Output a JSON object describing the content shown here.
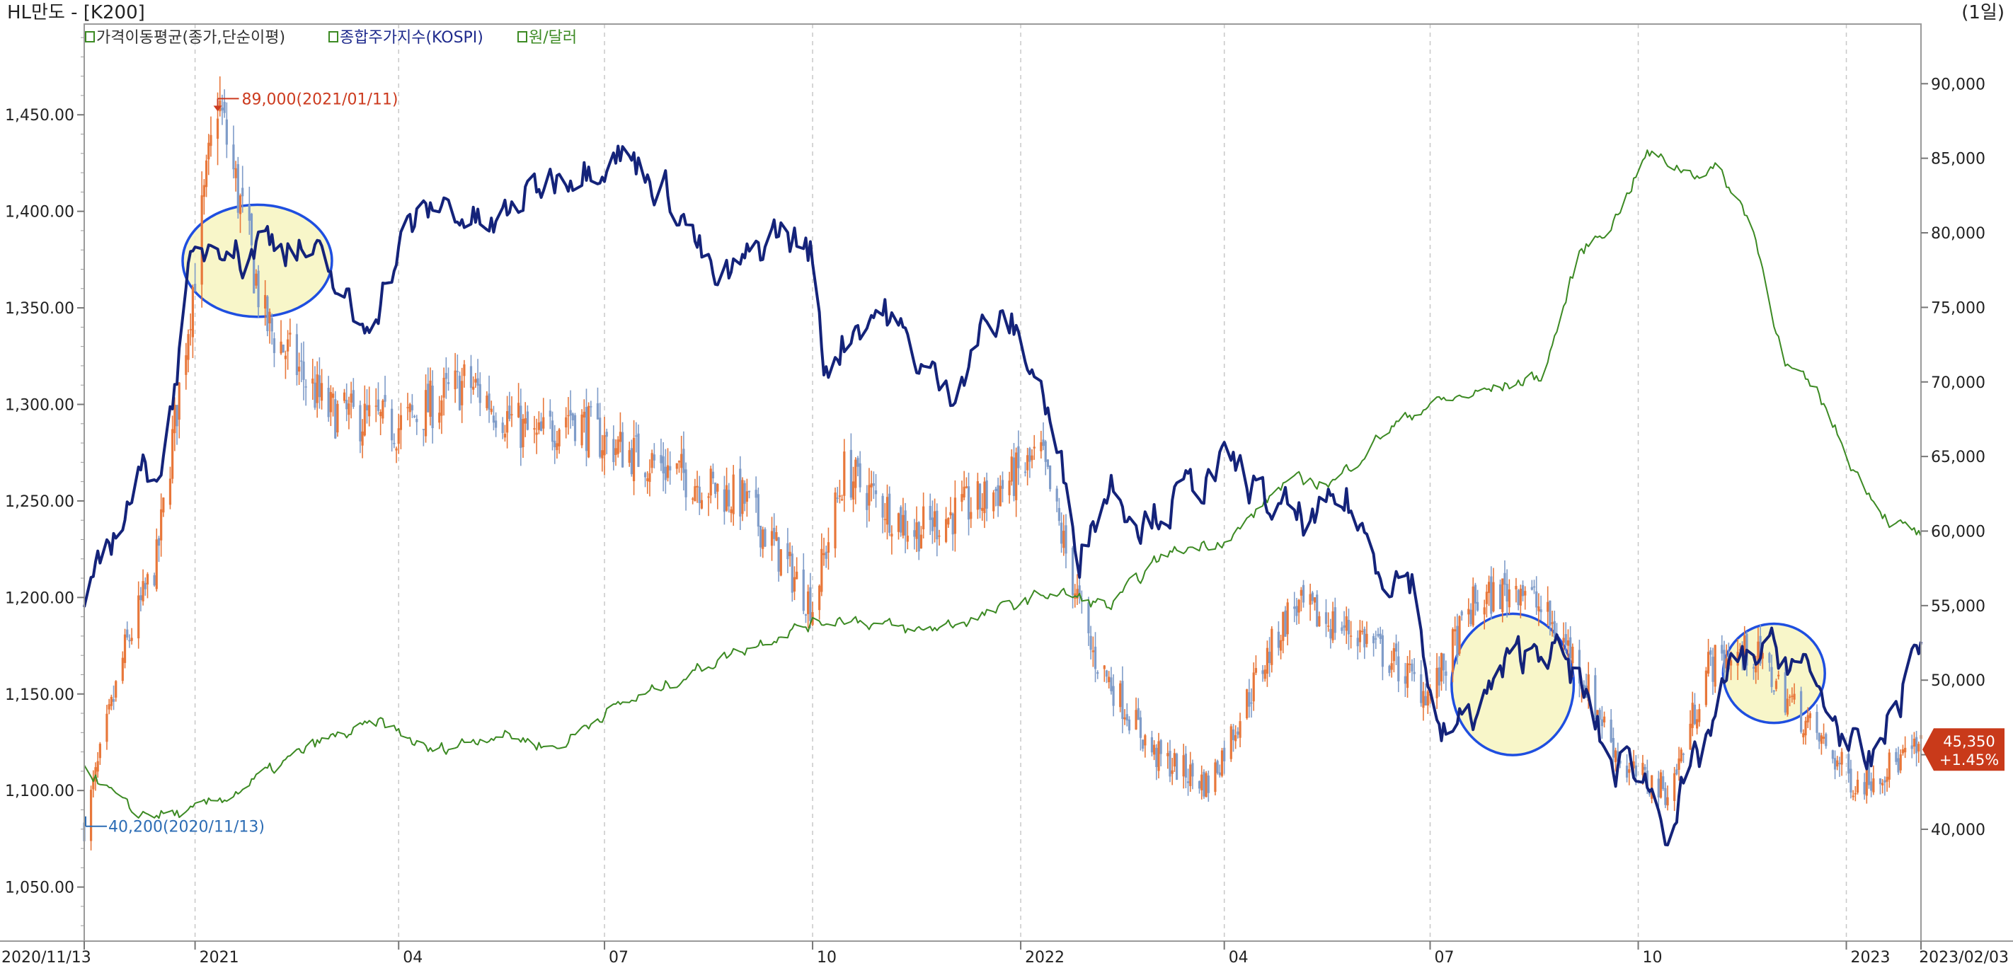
{
  "header": {
    "title": "HL만도 - [K200]",
    "period": "(1일)"
  },
  "legend": [
    {
      "icon": "legend-box-icon",
      "label": "가격이동평균(종가,단순이평)",
      "color": "#333333"
    },
    {
      "icon": "legend-box-icon",
      "label": "종합주가지수(KOSPI)",
      "color": "#1e2a8c"
    },
    {
      "icon": "legend-box-icon",
      "label": "원/달러",
      "color": "#3c8a23"
    }
  ],
  "colors": {
    "kospi": "#14237a",
    "krwusd": "#3c8a23",
    "candle_up": "#e8773a",
    "candle_down": "#7f9cc9",
    "max_marker": "#cc3b1f",
    "min_marker": "#2d6db5",
    "highlight_fill": "#f7f4c0",
    "highlight_stroke": "#1f4fe0",
    "last_price_badge": "#c93a1a"
  },
  "annotations": {
    "max_label": "89,000(2021/01/11)",
    "min_label": "40,200(2020/11/13)",
    "last_price": "45,350",
    "last_change": "+1.45%"
  },
  "chart_data": {
    "type": "line",
    "x_range": [
      "2020/11/13",
      "2023/02/03"
    ],
    "x_tick_labels": [
      "2020/11/13",
      "2021",
      "04",
      "07",
      "10",
      "2022",
      "04",
      "07",
      "10",
      "2023",
      "2023/02/03"
    ],
    "x_ticks": [
      "2020/11/13",
      "2021/01/01",
      "2021/04/01",
      "2021/07/01",
      "2021/10/01",
      "2022/01/01",
      "2022/04/01",
      "2022/07/01",
      "2022/10/01",
      "2023/01/01",
      "2023/02/03"
    ],
    "y_left": {
      "ticks": [
        "1,050.00",
        "1,100.00",
        "1,150.00",
        "1,200.00",
        "1,250.00",
        "1,300.00",
        "1,350.00",
        "1,400.00",
        "1,450.00"
      ],
      "range": [
        1022,
        1497
      ]
    },
    "y_right": {
      "ticks": [
        "40,000",
        "45,000",
        "50,000",
        "55,000",
        "60,000",
        "65,000",
        "70,000",
        "75,000",
        "80,000",
        "85,000",
        "90,000"
      ],
      "range": [
        32500,
        94000
      ]
    },
    "series": [
      {
        "name": "종합주가지수(KOSPI)",
        "axis": "left",
        "x": [
          "2020/11/13",
          "2020/11/25",
          "2020/12/07",
          "2020/12/18",
          "2020/12/30",
          "2021/01/08",
          "2021/01/15",
          "2021/01/22",
          "2021/02/01",
          "2021/02/10",
          "2021/02/22",
          "2021/03/05",
          "2021/03/15",
          "2021/03/25",
          "2021/04/05",
          "2021/04/20",
          "2021/05/03",
          "2021/05/13",
          "2021/05/25",
          "2021/06/10",
          "2021/06/25",
          "2021/07/06",
          "2021/07/20",
          "2021/08/02",
          "2021/08/20",
          "2021/09/01",
          "2021/09/15",
          "2021/09/30",
          "2021/10/06",
          "2021/10/20",
          "2021/11/01",
          "2021/11/15",
          "2021/11/30",
          "2021/12/15",
          "2021/12/28",
          "2022/01/10",
          "2022/01/27",
          "2022/02/10",
          "2022/02/24",
          "2022/03/10",
          "2022/03/25",
          "2022/04/05",
          "2022/04/20",
          "2022/05/10",
          "2022/05/25",
          "2022/06/10",
          "2022/06/23",
          "2022/07/05",
          "2022/07/20",
          "2022/08/05",
          "2022/08/20",
          "2022/09/05",
          "2022/09/20",
          "2022/09/30",
          "2022/10/14",
          "2022/10/28",
          "2022/11/10",
          "2022/11/25",
          "2022/12/10",
          "2022/12/28",
          "2023/01/10",
          "2023/01/25",
          "2023/02/03"
        ],
        "values": [
          1187,
          1230,
          1262,
          1272,
          1368,
          1385,
          1390,
          1375,
          1388,
          1385,
          1376,
          1360,
          1338,
          1360,
          1390,
          1405,
          1395,
          1390,
          1405,
          1420,
          1425,
          1432,
          1420,
          1405,
          1360,
          1372,
          1390,
          1380,
          1320,
          1342,
          1350,
          1325,
          1305,
          1340,
          1340,
          1310,
          1225,
          1260,
          1240,
          1250,
          1262,
          1268,
          1248,
          1238,
          1250,
          1215,
          1210,
          1125,
          1140,
          1165,
          1178,
          1155,
          1110,
          1115,
          1083,
          1115,
          1160,
          1172,
          1168,
          1135,
          1108,
          1150,
          1182
        ]
      },
      {
        "name": "원/달러",
        "axis": "left",
        "x": [
          "2020/11/13",
          "2020/12/04",
          "2020/12/30",
          "2021/01/20",
          "2021/02/25",
          "2021/03/25",
          "2021/04/15",
          "2021/05/15",
          "2021/06/10",
          "2021/06/30",
          "2021/07/20",
          "2021/08/20",
          "2021/09/20",
          "2021/10/15",
          "2021/11/15",
          "2021/12/15",
          "2022/01/15",
          "2022/02/10",
          "2022/03/05",
          "2022/04/05",
          "2022/04/28",
          "2022/05/20",
          "2022/06/10",
          "2022/06/30",
          "2022/07/20",
          "2022/08/20",
          "2022/09/05",
          "2022/09/20",
          "2022/10/05",
          "2022/10/25",
          "2022/11/05",
          "2022/11/20",
          "2022/12/05",
          "2022/12/20",
          "2023/01/05",
          "2023/01/20",
          "2023/02/03"
        ],
        "values": [
          1113,
          1088,
          1088,
          1100,
          1125,
          1135,
          1120,
          1130,
          1122,
          1140,
          1150,
          1168,
          1183,
          1190,
          1182,
          1190,
          1203,
          1195,
          1222,
          1232,
          1260,
          1260,
          1285,
          1300,
          1305,
          1315,
          1378,
          1395,
          1430,
          1420,
          1422,
          1395,
          1320,
          1305,
          1265,
          1240,
          1232
        ]
      }
    ],
    "price_series": {
      "name": "HL만도",
      "axis": "right",
      "x": [
        "2020/11/13",
        "2020/12/01",
        "2020/12/15",
        "2021/01/11",
        "2021/02/01",
        "2021/03/01",
        "2021/04/01",
        "2021/05/01",
        "2021/06/01",
        "2021/06/15",
        "2021/07/01",
        "2021/08/01",
        "2021/09/01",
        "2021/10/01",
        "2021/10/15",
        "2021/11/15",
        "2021/12/15",
        "2022/01/10",
        "2022/02/01",
        "2022/03/01",
        "2022/03/25",
        "2022/04/15",
        "2022/05/01",
        "2022/06/01",
        "2022/07/01",
        "2022/07/20",
        "2022/08/10",
        "2022/09/01",
        "2022/09/25",
        "2022/10/15",
        "2022/11/01",
        "2022/11/20",
        "2022/12/15",
        "2023/01/05",
        "2023/02/03"
      ],
      "values": [
        40200,
        52000,
        58000,
        89000,
        74000,
        68000,
        67000,
        70000,
        66000,
        68000,
        66000,
        64000,
        62000,
        55000,
        64000,
        60000,
        62000,
        65000,
        52000,
        45000,
        43000,
        50000,
        55000,
        53000,
        49000,
        55000,
        56500,
        52000,
        44000,
        42500,
        51000,
        52000,
        47000,
        43000,
        45350
      ]
    },
    "highlights": [
      "2020/12/29 ~ 2021/02/28",
      "2022/07/13 ~ 2022/08/31",
      "2022/11/10 ~ 2022/12/20"
    ]
  }
}
